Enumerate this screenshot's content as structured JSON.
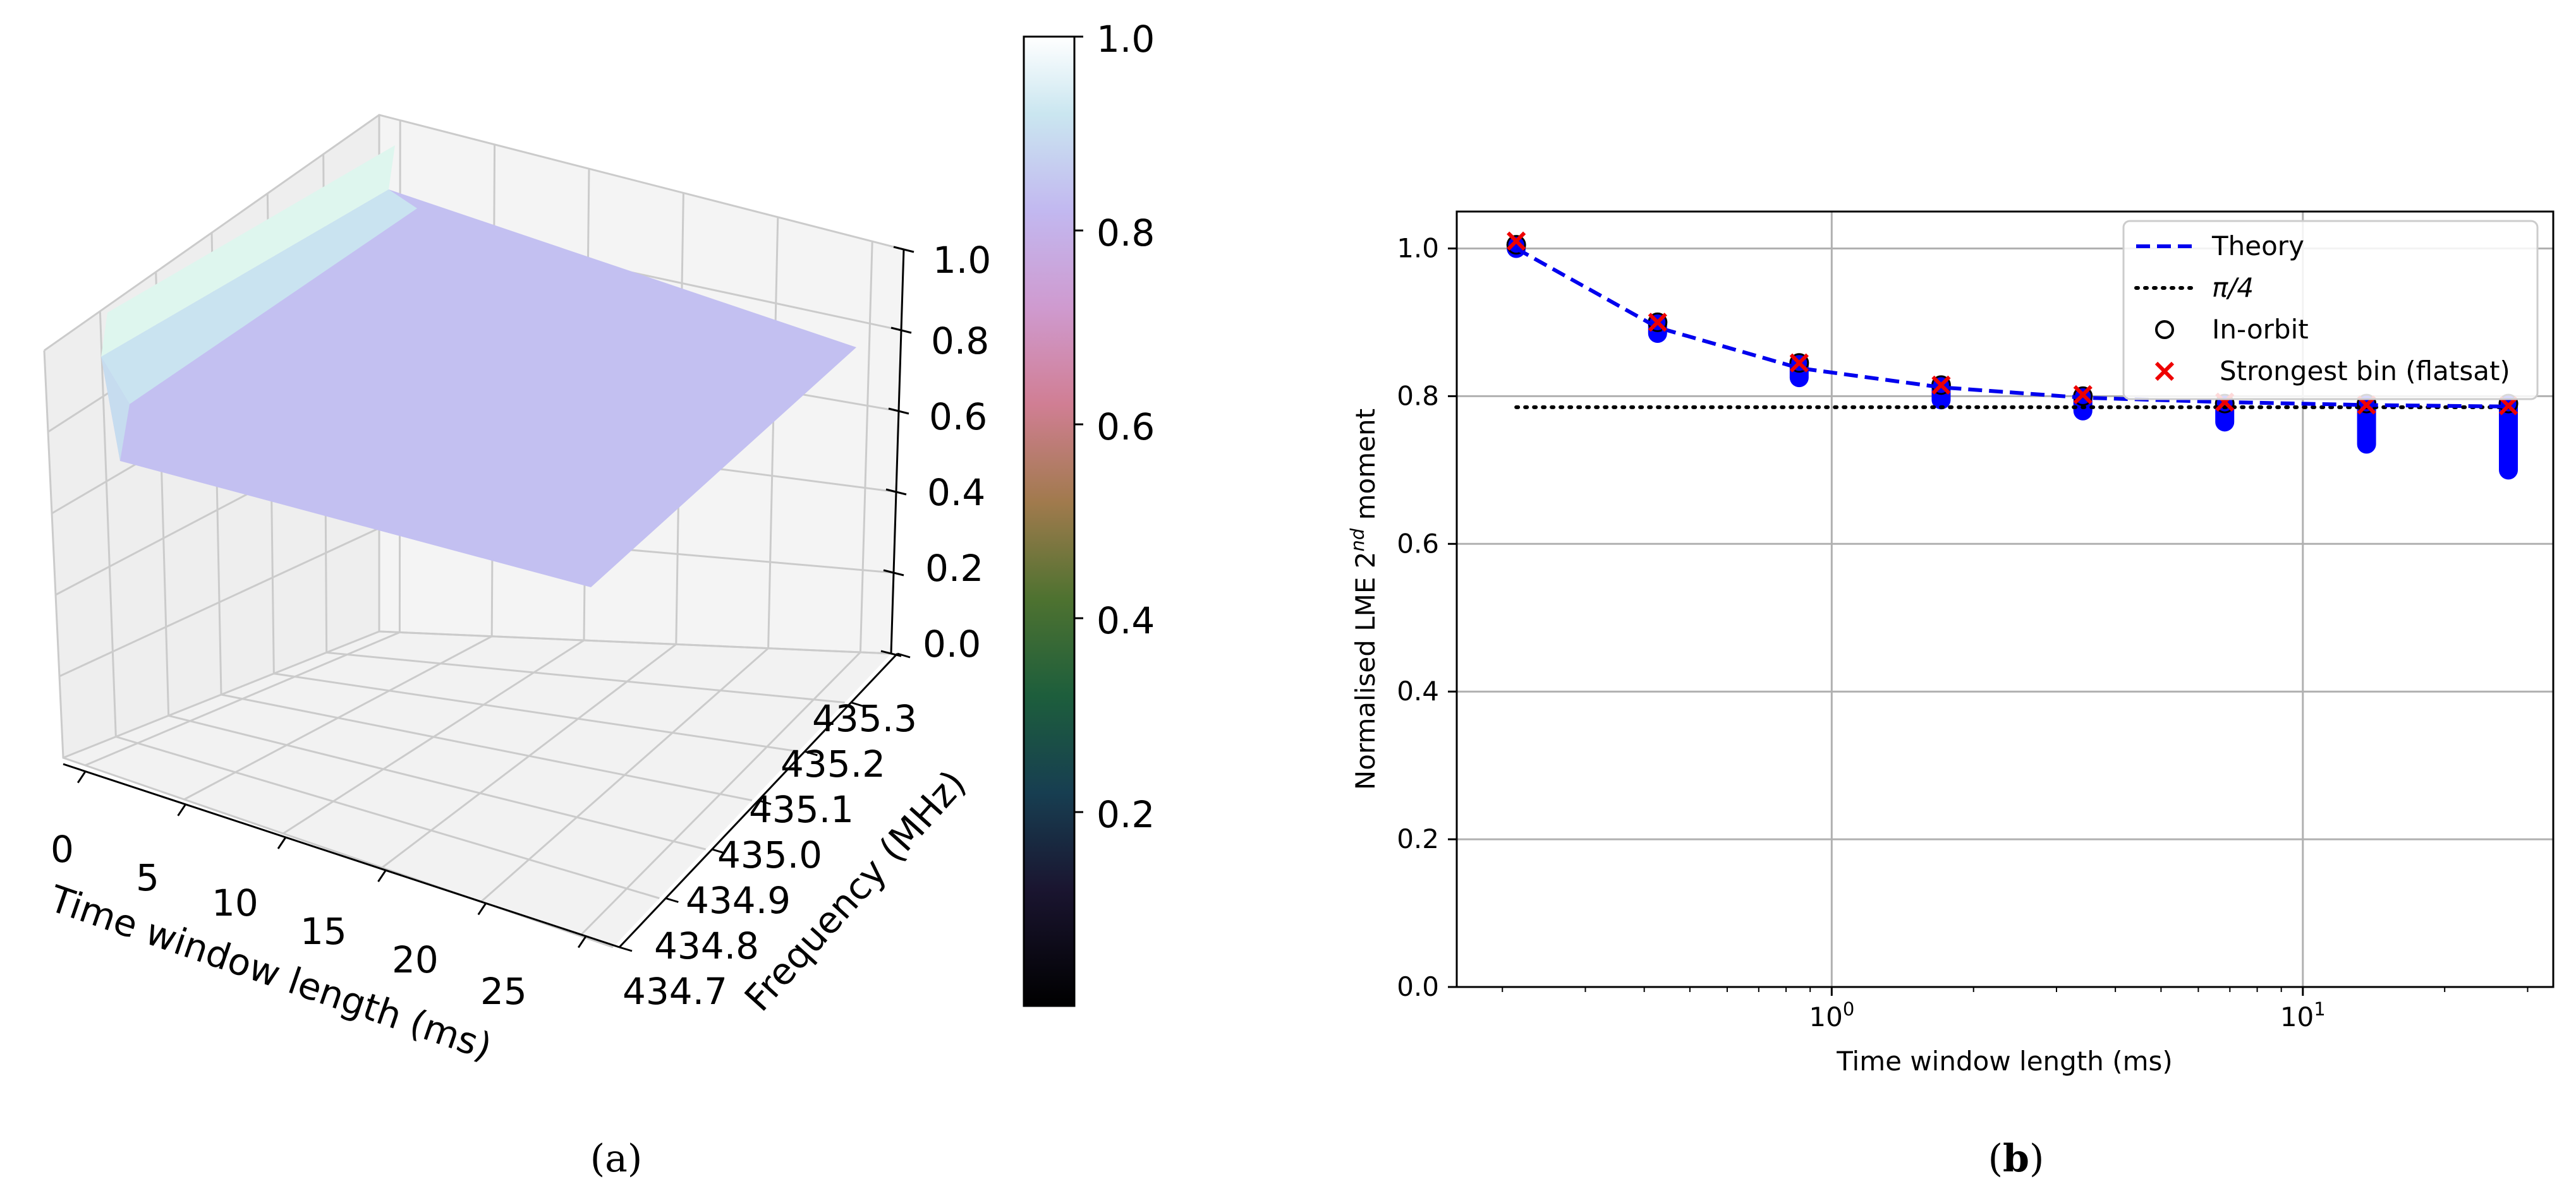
{
  "panel_a": {
    "caption_open": "(",
    "caption_letter": "a",
    "caption_close": ")",
    "chart_data": {
      "type": "surface",
      "xlabel": "Time window length (ms)",
      "ylabel": "Frequency (MHz)",
      "x_ticks": [
        "0",
        "5",
        "10",
        "15",
        "20",
        "25"
      ],
      "y_ticks": [
        "434.7",
        "434.8",
        "434.9",
        "435.0",
        "435.1",
        "435.2",
        "435.3"
      ],
      "z_ticks": [
        "0.0",
        "0.2",
        "0.4",
        "0.6",
        "0.8",
        "1.0"
      ],
      "zlim": [
        0,
        1
      ],
      "surface_profile": {
        "time_ms": [
          0.2,
          0.4,
          0.9,
          1.7,
          3.4,
          6.8,
          13.7,
          27.3
        ],
        "value": [
          1.0,
          0.9,
          0.84,
          0.81,
          0.8,
          0.79,
          0.786,
          0.785
        ]
      },
      "colorbar": {
        "ticks": [
          "0.2",
          "0.4",
          "0.6",
          "0.8",
          "1.0"
        ],
        "range": [
          0,
          1
        ],
        "colormap": "cubehelix"
      }
    }
  },
  "panel_b": {
    "caption_open": "(",
    "caption_letter": "b",
    "caption_close": ")",
    "ylabel_main": "Normalised LME 2",
    "ylabel_sup": "nd",
    "ylabel_tail": " moment",
    "chart_data": {
      "type": "scatter",
      "xscale": "log",
      "xlim": [
        0.16,
        34
      ],
      "ylim": [
        0,
        1.05
      ],
      "xlabel": "Time window length (ms)",
      "x_ticks": [
        {
          "base": "10",
          "exp": "0",
          "value": 1
        },
        {
          "base": "10",
          "exp": "1",
          "value": 10
        }
      ],
      "y_ticks": [
        "0.0",
        "0.2",
        "0.4",
        "0.6",
        "0.8",
        "1.0"
      ],
      "grid": true,
      "legend_position": "top-right",
      "x": [
        0.214,
        0.427,
        0.853,
        1.707,
        3.413,
        6.827,
        13.653,
        27.307
      ],
      "series": [
        {
          "name": "Theory",
          "style": "dashed-line",
          "color": "#0000ee",
          "values": [
            1.0,
            0.893,
            0.838,
            0.812,
            0.798,
            0.792,
            0.788,
            0.786
          ]
        },
        {
          "name": "π/4",
          "style": "dotted-line",
          "color": "#000000",
          "values": [
            0.785,
            0.785,
            0.785,
            0.785,
            0.785,
            0.785,
            0.785,
            0.785
          ]
        },
        {
          "name": "In-orbit",
          "style": "circle",
          "color": "#0000ff",
          "ranges": [
            [
              1.0,
              1.005
            ],
            [
              0.885,
              0.9
            ],
            [
              0.825,
              0.845
            ],
            [
              0.795,
              0.815
            ],
            [
              0.78,
              0.8
            ],
            [
              0.765,
              0.79
            ],
            [
              0.735,
              0.79
            ],
            [
              0.7,
              0.79
            ]
          ]
        },
        {
          "name": "Strongest bin (flatsat)",
          "style": "cross",
          "color": "#ee0000",
          "values": [
            1.01,
            0.9,
            0.845,
            0.815,
            0.802,
            0.792,
            0.788,
            0.787
          ]
        }
      ]
    }
  }
}
